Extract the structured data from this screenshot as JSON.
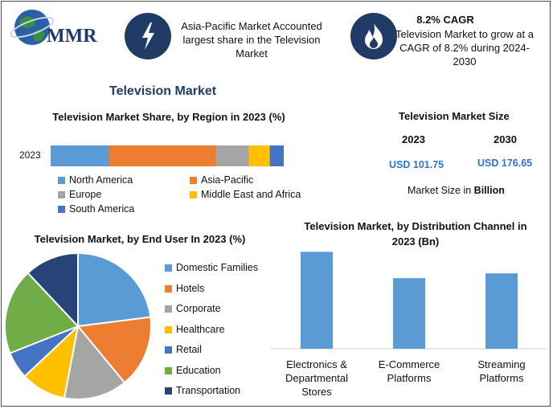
{
  "header": {
    "logo_text": "MMR",
    "card1": {
      "text": "Asia-Pacific Market Accounted largest share in the Television Market",
      "icon": "lightning-icon"
    },
    "card2": {
      "title": "8.2% CAGR",
      "text": "Television Market to grow at a CAGR of 8.2% during 2024-2030",
      "icon": "flame-icon"
    }
  },
  "main_title": "Television Market",
  "size_panel": {
    "title": "Television Market Size",
    "years": [
      "2023",
      "2030"
    ],
    "values": [
      "USD 101.75",
      "USD 176.65"
    ],
    "note_prefix": "Market Size in ",
    "note_unit": "Billion"
  },
  "colors": {
    "north_america": "#5b9bd5",
    "asia_pacific": "#ed7d31",
    "europe": "#a5a5a5",
    "mea": "#ffc000",
    "south_america": "#4472c4",
    "agriculture_green": "#70ad47",
    "transport": "#264478",
    "header_dark": "#1f3b66"
  },
  "chart_data": [
    {
      "type": "bar",
      "orientation": "horizontal-stacked",
      "title": "Television Market Share, by Region in 2023 (%)",
      "categories": [
        "2023"
      ],
      "series": [
        {
          "name": "North America",
          "values": [
            25
          ]
        },
        {
          "name": "Asia-Pacific",
          "values": [
            46
          ]
        },
        {
          "name": "Europe",
          "values": [
            14
          ]
        },
        {
          "name": "Middle East and Africa",
          "values": [
            9
          ]
        },
        {
          "name": "South America",
          "values": [
            6
          ]
        }
      ],
      "xlim": [
        0,
        100
      ]
    },
    {
      "type": "pie",
      "title": "Television Market, by End User In 2023 (%)",
      "labels": [
        "Domestic Families",
        "Hotels",
        "Corporate",
        "Healthcare",
        "Retail",
        "Education",
        "Transportation"
      ],
      "values": [
        23,
        16,
        14,
        10,
        6,
        19,
        12
      ]
    },
    {
      "type": "bar",
      "title": "Television Market, by Distribution Channel in 2023 (Bn)",
      "categories": [
        "Electronics & Departmental Stores",
        "E-Commerce Platforms",
        "Streaming Platforms"
      ],
      "values": [
        40.5,
        29.5,
        31.5
      ],
      "ylim": [
        0,
        45
      ]
    }
  ]
}
